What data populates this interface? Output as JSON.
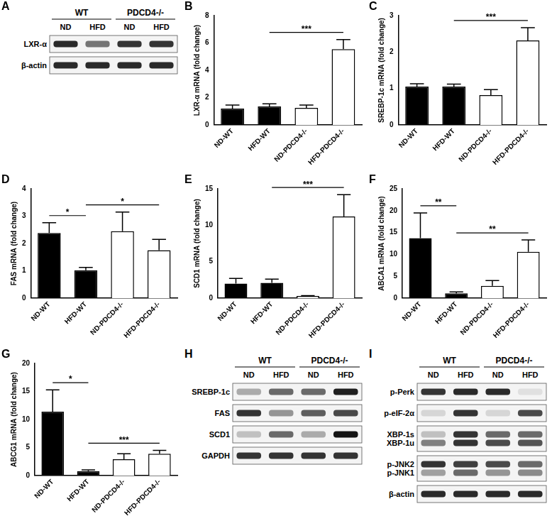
{
  "chart_data": [
    {
      "type": "bar",
      "label": "B",
      "y_label": "LXR-α mRNA (fold change)",
      "categories": [
        "ND-WT",
        "HFD-WT",
        "ND-PDCD4-/-",
        "HFD-PDCD4-/-"
      ],
      "values": [
        1.2,
        1.35,
        1.25,
        5.55
      ],
      "errors": [
        0.25,
        0.2,
        0.2,
        0.7
      ],
      "colors": [
        "#000000",
        "#000000",
        "#ffffff",
        "#ffffff"
      ],
      "ylim": [
        0,
        8
      ],
      "yticks": [
        0,
        2,
        4,
        6,
        8
      ],
      "grid": false,
      "annotations": [
        {
          "between": [
            "HFD-WT",
            "HFD-PDCD4-/-"
          ],
          "text": "***"
        }
      ]
    },
    {
      "type": "bar",
      "label": "C",
      "y_label": "SREBP-1c mRNA (fold change)",
      "categories": [
        "ND-WT",
        "HFD-WT",
        "ND-PDCD4-/-",
        "HFD-PDCD4-/-"
      ],
      "values": [
        1.05,
        1.05,
        0.82,
        2.32
      ],
      "errors": [
        0.08,
        0.07,
        0.15,
        0.35
      ],
      "colors": [
        "#000000",
        "#000000",
        "#ffffff",
        "#ffffff"
      ],
      "ylim": [
        0,
        3
      ],
      "yticks": [
        0,
        1,
        2,
        3
      ],
      "grid": false,
      "annotations": [
        {
          "between": [
            "HFD-WT",
            "HFD-PDCD4-/-"
          ],
          "text": "***"
        }
      ]
    },
    {
      "type": "bar",
      "label": "D",
      "y_label": "FAS mRNA (fold change)",
      "categories": [
        "ND-WT",
        "HFD-WT",
        "ND-PDCD4-/-",
        "HFD-PDCD4-/-"
      ],
      "values": [
        2.38,
        1.02,
        2.45,
        1.75
      ],
      "errors": [
        0.38,
        0.1,
        0.7,
        0.4
      ],
      "colors": [
        "#000000",
        "#000000",
        "#ffffff",
        "#ffffff"
      ],
      "ylim": [
        0,
        4
      ],
      "yticks": [
        0,
        1,
        2,
        3,
        4
      ],
      "grid": false,
      "annotations": [
        {
          "between": [
            "ND-WT",
            "HFD-WT"
          ],
          "text": "*"
        },
        {
          "between": [
            "HFD-WT",
            "HFD-PDCD4-/-"
          ],
          "text": "*"
        }
      ]
    },
    {
      "type": "bar",
      "label": "E",
      "y_label": "SCD1 mRNA (fold change)",
      "categories": [
        "ND-WT",
        "HFD-WT",
        "ND-PDCD4-/-",
        "HFD-PDCD4-/-"
      ],
      "values": [
        2.0,
        2.1,
        0.3,
        11.2
      ],
      "errors": [
        0.7,
        0.5,
        0.05,
        3.0
      ],
      "colors": [
        "#000000",
        "#000000",
        "#ffffff",
        "#ffffff"
      ],
      "ylim": [
        0,
        15
      ],
      "yticks": [
        0,
        5,
        10,
        15
      ],
      "grid": false,
      "annotations": [
        {
          "between": [
            "HFD-WT",
            "HFD-PDCD4-/-"
          ],
          "text": "***"
        }
      ]
    },
    {
      "type": "bar",
      "label": "F",
      "y_label": "ABCA1 mRNA (fold change)",
      "categories": [
        "ND-WT",
        "HFD-WT",
        "ND-PDCD4-/-",
        "HFD-PDCD4-/-"
      ],
      "values": [
        13.7,
        1.1,
        2.8,
        10.6
      ],
      "errors": [
        5.8,
        0.3,
        1.2,
        2.7
      ],
      "colors": [
        "#000000",
        "#000000",
        "#ffffff",
        "#ffffff"
      ],
      "ylim": [
        0,
        25
      ],
      "yticks": [
        0,
        5,
        10,
        15,
        20,
        25
      ],
      "grid": false,
      "annotations": [
        {
          "between": [
            "ND-WT",
            "HFD-WT"
          ],
          "text": "**"
        },
        {
          "between": [
            "HFD-WT",
            "HFD-PDCD4-/-"
          ],
          "text": "**"
        }
      ]
    },
    {
      "type": "bar",
      "label": "G",
      "y_label": "ABCG1 mRNA (fold change)",
      "categories": [
        "ND-WT",
        "HFD-WT",
        "ND-PDCD4-/-",
        "HFD-PDCD4-/-"
      ],
      "values": [
        11.4,
        0.8,
        2.9,
        3.9
      ],
      "errors": [
        3.9,
        0.2,
        1.0,
        0.6
      ],
      "colors": [
        "#000000",
        "#000000",
        "#ffffff",
        "#ffffff"
      ],
      "ylim": [
        0,
        20
      ],
      "yticks": [
        0,
        5,
        10,
        15,
        20
      ],
      "grid": false,
      "annotations": [
        {
          "between": [
            "ND-WT",
            "HFD-WT"
          ],
          "text": "*"
        },
        {
          "between": [
            "HFD-WT",
            "HFD-PDCD4-/-"
          ],
          "text": "***"
        }
      ]
    }
  ],
  "blots": [
    {
      "label": "A",
      "groups": [
        {
          "name": "WT",
          "lanes": [
            "ND",
            "HFD"
          ]
        },
        {
          "name": "PDCD4-/-",
          "lanes": [
            "ND",
            "HFD"
          ]
        }
      ],
      "rows": [
        {
          "labels": [
            "LXR-α"
          ],
          "intensity": [
            [
              0.9,
              0.55,
              0.85,
              0.85
            ]
          ]
        },
        {
          "labels": [
            "β-actin"
          ],
          "intensity": [
            [
              0.9,
              0.9,
              0.9,
              0.9
            ]
          ]
        }
      ]
    },
    {
      "label": "H",
      "groups": [
        {
          "name": "WT",
          "lanes": [
            "ND",
            "HFD"
          ]
        },
        {
          "name": "PDCD4-/-",
          "lanes": [
            "ND",
            "HFD"
          ]
        }
      ],
      "rows": [
        {
          "labels": [
            "SREBP-1c"
          ],
          "intensity": [
            [
              0.3,
              0.6,
              0.6,
              0.95
            ]
          ]
        },
        {
          "labels": [
            "FAS"
          ],
          "intensity": [
            [
              0.85,
              0.4,
              0.65,
              0.75
            ]
          ]
        },
        {
          "labels": [
            "SCD1"
          ],
          "intensity": [
            [
              0.2,
              0.6,
              0.3,
              1.0
            ]
          ]
        },
        {
          "labels": [
            "GAPDH"
          ],
          "intensity": [
            [
              0.85,
              0.85,
              0.85,
              0.85
            ]
          ]
        }
      ]
    },
    {
      "label": "I",
      "groups": [
        {
          "name": "WT",
          "lanes": [
            "ND",
            "HFD"
          ]
        },
        {
          "name": "PDCD4-/-",
          "lanes": [
            "ND",
            "HFD"
          ]
        }
      ],
      "rows": [
        {
          "labels": [
            "p-Perk"
          ],
          "intensity": [
            [
              0.85,
              0.9,
              0.9,
              0.05
            ]
          ]
        },
        {
          "labels": [
            "p-eIF-2α"
          ],
          "intensity": [
            [
              0.1,
              0.85,
              0.1,
              0.75
            ]
          ]
        },
        {
          "labels": [
            "XBP-1s",
            "XBP-1u"
          ],
          "intensity": [
            [
              0.2,
              0.85,
              0.6,
              0.6
            ],
            [
              0.5,
              0.85,
              0.75,
              0.7
            ]
          ]
        },
        {
          "labels": [
            "p-JNK2",
            "p-JNK1"
          ],
          "intensity": [
            [
              0.85,
              0.8,
              0.75,
              0.6
            ],
            [
              0.35,
              0.6,
              0.4,
              0.45
            ]
          ]
        },
        {
          "labels": [
            "β-actin"
          ],
          "intensity": [
            [
              0.9,
              0.9,
              0.9,
              0.9
            ]
          ]
        }
      ]
    }
  ]
}
